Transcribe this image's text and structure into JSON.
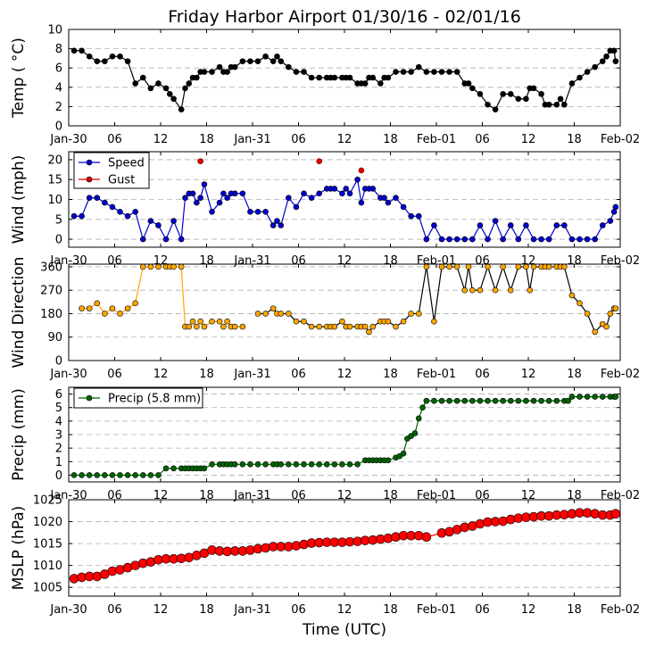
{
  "title": "Friday Harbor Airport 01/30/16 - 02/01/16",
  "xlabel": "Time (UTC)",
  "xtick_labels": [
    "Jan-30",
    "06",
    "12",
    "18",
    "Jan-31",
    "06",
    "12",
    "18",
    "Feb-01",
    "06",
    "12",
    "18",
    "Feb-02"
  ],
  "colors": {
    "temp": "#000000",
    "speed": "#0000cc",
    "gust": "#dd0000",
    "direction": "#ffa500",
    "precip": "#006400",
    "mslp": "#ff0000",
    "grid": "#b0b0b0"
  },
  "chart_data": [
    {
      "id": "temp",
      "type": "line",
      "ylabel": "Temp ( °C)",
      "ylim": [
        0,
        10
      ],
      "yticks": [
        0,
        2,
        4,
        6,
        8,
        10
      ],
      "xlim": [
        0,
        72
      ],
      "grid": true,
      "series": [
        {
          "x": [
            0.7,
            1.7,
            2.7,
            3.7,
            4.7,
            5.7,
            6.7,
            7.7,
            8.7,
            9.7,
            10.7,
            11.7,
            12.7,
            13.2,
            13.7,
            14.7,
            15.2,
            15.7,
            16.2,
            16.7,
            17.2,
            17.7,
            18.7,
            19.7,
            20.2,
            20.7,
            21.2,
            21.7,
            22.7,
            23.7,
            24.7,
            25.7,
            26.7,
            27.2,
            27.7,
            28.7,
            29.7,
            30.7,
            31.7,
            32.7,
            33.7,
            34.2,
            34.7,
            35.7,
            36.2,
            36.7,
            37.7,
            38.2,
            38.7,
            39.2,
            39.7,
            40.7,
            41.2,
            41.7,
            42.7,
            43.7,
            44.7,
            45.7,
            46.7,
            47.7,
            48.7,
            49.7,
            50.7,
            51.7,
            52.2,
            52.7,
            53.7,
            54.7,
            55.7,
            56.7,
            57.7,
            58.7,
            59.7,
            60.2,
            60.7,
            61.7,
            62.2,
            62.7,
            63.7,
            64.2,
            64.7,
            65.7,
            66.7,
            67.7,
            68.7,
            69.7,
            70.2,
            70.7,
            71.2,
            71.4
          ],
          "values": [
            7.8,
            7.8,
            7.2,
            6.7,
            6.7,
            7.2,
            7.2,
            6.7,
            4.4,
            5.0,
            3.9,
            4.4,
            3.9,
            3.3,
            2.8,
            1.7,
            3.9,
            4.4,
            5.0,
            5.0,
            5.6,
            5.6,
            5.6,
            6.1,
            5.6,
            5.6,
            6.1,
            6.1,
            6.7,
            6.7,
            6.7,
            7.2,
            6.7,
            7.2,
            6.7,
            6.1,
            5.6,
            5.6,
            5.0,
            5.0,
            5.0,
            5.0,
            5.0,
            5.0,
            5.0,
            5.0,
            4.4,
            4.4,
            4.4,
            5.0,
            5.0,
            4.4,
            5.0,
            5.0,
            5.6,
            5.6,
            5.6,
            6.1,
            5.6,
            5.6,
            5.6,
            5.6,
            5.6,
            4.4,
            4.4,
            3.9,
            3.3,
            2.2,
            1.7,
            3.3,
            3.3,
            2.8,
            2.8,
            3.9,
            3.9,
            3.3,
            2.2,
            2.2,
            2.2,
            2.8,
            2.2,
            4.4,
            5.0,
            5.6,
            6.1,
            6.7,
            7.2,
            7.8,
            7.8,
            6.7
          ]
        }
      ]
    },
    {
      "id": "wind",
      "type": "line",
      "ylabel": "Wind (mph)",
      "ylim": [
        -2,
        22
      ],
      "yticks": [
        0,
        5,
        10,
        15,
        20
      ],
      "xlim": [
        0,
        72
      ],
      "grid": true,
      "legend": "upper-left",
      "series": [
        {
          "name": "Speed",
          "x": [
            0.7,
            1.7,
            2.7,
            3.7,
            4.7,
            5.7,
            6.7,
            7.7,
            8.7,
            9.7,
            10.7,
            11.7,
            12.7,
            13.7,
            14.7,
            15.2,
            15.7,
            16.2,
            16.7,
            17.2,
            17.7,
            18.7,
            19.7,
            20.2,
            20.7,
            21.2,
            21.7,
            22.7,
            23.7,
            24.7,
            25.7,
            26.7,
            27.2,
            27.7,
            28.7,
            29.7,
            30.7,
            31.7,
            32.7,
            33.7,
            34.2,
            34.7,
            35.7,
            36.2,
            36.7,
            37.7,
            38.2,
            38.7,
            39.2,
            39.7,
            40.7,
            41.2,
            41.7,
            42.7,
            43.7,
            44.7,
            45.7,
            46.7,
            47.7,
            48.7,
            49.7,
            50.7,
            51.7,
            52.7,
            53.7,
            54.7,
            55.7,
            56.7,
            57.7,
            58.7,
            59.7,
            60.7,
            61.7,
            62.7,
            63.7,
            64.7,
            65.7,
            66.7,
            67.7,
            68.7,
            69.7,
            70.7,
            71.2,
            71.4
          ],
          "values": [
            5.8,
            5.8,
            10.4,
            10.4,
            9.2,
            8.1,
            6.9,
            5.8,
            6.9,
            0,
            4.6,
            3.5,
            0,
            4.6,
            0,
            10.4,
            11.5,
            11.5,
            9.2,
            10.4,
            13.8,
            6.9,
            9.2,
            11.5,
            10.4,
            11.5,
            11.5,
            11.5,
            6.9,
            6.9,
            6.9,
            3.5,
            4.6,
            3.5,
            10.4,
            8.1,
            11.5,
            10.4,
            11.5,
            12.7,
            12.7,
            12.7,
            11.5,
            12.7,
            11.5,
            15.0,
            9.2,
            12.7,
            12.7,
            12.7,
            10.4,
            10.4,
            9.2,
            10.4,
            8.1,
            5.8,
            5.8,
            0,
            3.5,
            0,
            0,
            0,
            0,
            0,
            3.5,
            0,
            4.6,
            0,
            3.5,
            0,
            3.5,
            0,
            0,
            0,
            3.5,
            3.5,
            0,
            0,
            0,
            0,
            3.5,
            4.6,
            6.9,
            8.1
          ]
        },
        {
          "name": "Gust",
          "x": [
            17.2,
            32.7,
            38.2
          ],
          "values": [
            19.6,
            19.6,
            17.3
          ]
        }
      ]
    },
    {
      "id": "direction",
      "type": "line",
      "ylabel": "Wind Direction",
      "ylim": [
        0,
        370
      ],
      "yticks": [
        0,
        90,
        180,
        270,
        360
      ],
      "xlim": [
        0,
        72
      ],
      "grid": true,
      "series": [
        {
          "x": [
            1.7,
            2.7,
            3.7,
            4.7,
            5.7,
            6.7,
            7.7,
            8.7,
            9.7,
            10.7,
            11.7,
            12.7,
            13.2,
            13.7,
            14.7,
            15.2,
            15.7,
            16.2,
            16.7,
            17.2,
            17.7,
            18.7,
            19.7,
            20.2,
            20.7,
            21.2,
            21.7,
            22.7
          ],
          "values": [
            200,
            200,
            220,
            180,
            200,
            180,
            200,
            220,
            360,
            360,
            360,
            360,
            360,
            360,
            360,
            130,
            130,
            150,
            130,
            150,
            130,
            150,
            150,
            130,
            150,
            130,
            130,
            130
          ]
        },
        {
          "x": [
            24.7,
            25.7,
            26.7,
            27.2,
            27.7,
            28.7,
            29.7,
            30.7,
            31.7,
            32.7,
            33.7,
            34.2,
            34.7,
            35.7,
            36.2,
            36.7,
            37.7,
            38.2,
            38.7,
            39.2,
            39.7,
            40.7,
            41.2,
            41.7,
            42.7,
            43.7,
            44.7,
            45.7,
            46.7,
            47.7,
            48.7,
            49.7,
            50.7,
            51.7,
            52.2,
            52.7,
            53.7,
            54.7,
            55.7,
            56.7,
            57.7,
            58.7,
            59.7,
            60.2,
            60.7,
            61.7,
            62.2,
            62.7,
            63.7,
            64.2,
            64.7,
            65.7,
            66.7,
            67.7,
            68.7,
            69.7,
            70.2,
            70.7,
            71.2,
            71.4
          ],
          "values": [
            180,
            180,
            200,
            180,
            180,
            180,
            150,
            150,
            130,
            130,
            130,
            130,
            130,
            150,
            130,
            130,
            130,
            130,
            130,
            110,
            130,
            150,
            150,
            150,
            130,
            150,
            180,
            180,
            360,
            150,
            360,
            360,
            360,
            270,
            360,
            270,
            270,
            360,
            270,
            360,
            270,
            360,
            360,
            270,
            360,
            360,
            360,
            360,
            360,
            360,
            360,
            250,
            220,
            180,
            110,
            140,
            130,
            180,
            200,
            200
          ]
        }
      ]
    },
    {
      "id": "precip",
      "type": "line",
      "ylabel": "Precip (mm)",
      "ylim": [
        -0.5,
        6.5
      ],
      "yticks": [
        0,
        1,
        2,
        3,
        4,
        5,
        6
      ],
      "xlim": [
        0,
        72
      ],
      "grid": true,
      "legend": "upper-left",
      "series": [
        {
          "name": "Precip (5.8 mm)",
          "x": [
            0.7,
            1.7,
            2.7,
            3.7,
            4.7,
            5.7,
            6.7,
            7.7,
            8.7,
            9.7,
            10.7,
            11.7,
            12.7,
            13.7,
            14.7,
            15.2,
            15.7,
            16.2,
            16.7,
            17.2,
            17.7,
            18.7,
            19.7,
            20.2,
            20.7,
            21.2,
            21.7,
            22.7,
            23.7,
            24.7,
            25.7,
            26.7,
            27.2,
            27.7,
            28.7,
            29.7,
            30.7,
            31.7,
            32.7,
            33.7,
            34.7,
            35.7,
            36.7,
            37.7,
            38.7,
            39.2,
            39.7,
            40.2,
            40.7,
            41.2,
            41.7,
            42.7,
            43.2,
            43.7,
            44.2,
            44.7,
            45.2,
            45.7,
            46.2,
            46.7,
            47.7,
            48.7,
            49.7,
            50.7,
            51.7,
            52.7,
            53.7,
            54.7,
            55.7,
            56.7,
            57.7,
            58.7,
            59.7,
            60.7,
            61.7,
            62.7,
            63.7,
            64.7,
            65.2,
            65.7,
            66.7,
            67.7,
            68.7,
            69.7,
            70.7,
            71.2,
            71.4
          ],
          "values": [
            0,
            0,
            0,
            0,
            0,
            0,
            0,
            0,
            0,
            0,
            0,
            0,
            0.5,
            0.5,
            0.5,
            0.5,
            0.5,
            0.5,
            0.5,
            0.5,
            0.5,
            0.8,
            0.8,
            0.8,
            0.8,
            0.8,
            0.8,
            0.8,
            0.8,
            0.8,
            0.8,
            0.8,
            0.8,
            0.8,
            0.8,
            0.8,
            0.8,
            0.8,
            0.8,
            0.8,
            0.8,
            0.8,
            0.8,
            0.8,
            1.1,
            1.1,
            1.1,
            1.1,
            1.1,
            1.1,
            1.1,
            1.3,
            1.4,
            1.6,
            2.7,
            2.9,
            3.1,
            4.2,
            5.0,
            5.5,
            5.5,
            5.5,
            5.5,
            5.5,
            5.5,
            5.5,
            5.5,
            5.5,
            5.5,
            5.5,
            5.5,
            5.5,
            5.5,
            5.5,
            5.5,
            5.5,
            5.5,
            5.5,
            5.5,
            5.8,
            5.8,
            5.8,
            5.8,
            5.8,
            5.8,
            5.8,
            5.8
          ]
        }
      ]
    },
    {
      "id": "mslp",
      "type": "line",
      "ylabel": "MSLP (hPa)",
      "ylim": [
        1003,
        1025
      ],
      "yticks": [
        1005,
        1010,
        1015,
        1020,
        1025
      ],
      "xlim": [
        0,
        72
      ],
      "grid": true,
      "series": [
        {
          "x": [
            0.7,
            1.7,
            2.7,
            3.7,
            4.7,
            5.7,
            6.7,
            7.7,
            8.7,
            9.7,
            10.7,
            11.7,
            12.7,
            13.7,
            14.7,
            15.7,
            16.7,
            17.7,
            18.7,
            19.7,
            20.7,
            21.7,
            22.7,
            23.7,
            24.7,
            25.7,
            26.7,
            27.7,
            28.7,
            29.7,
            30.7,
            31.7,
            32.7,
            33.7,
            34.7,
            35.7,
            36.7,
            37.7,
            38.7,
            39.7,
            40.7,
            41.7,
            42.7,
            43.7,
            44.7,
            45.7,
            46.7,
            48.7,
            49.7,
            50.7,
            51.7,
            52.7,
            53.7,
            54.7,
            55.7,
            56.7,
            57.7,
            58.7,
            59.7,
            60.7,
            61.7,
            62.7,
            63.7,
            64.7,
            65.7,
            66.7,
            67.7,
            68.7,
            69.7,
            70.7,
            71.4
          ],
          "values": [
            1007,
            1007.3,
            1007.5,
            1007.5,
            1008,
            1008.7,
            1009,
            1009.5,
            1010,
            1010.5,
            1010.8,
            1011.3,
            1011.5,
            1011.5,
            1011.6,
            1011.8,
            1012.3,
            1012.8,
            1013.5,
            1013.3,
            1013.2,
            1013.3,
            1013.3,
            1013.5,
            1013.8,
            1014,
            1014.3,
            1014.3,
            1014.3,
            1014.5,
            1014.8,
            1015.1,
            1015.2,
            1015.3,
            1015.3,
            1015.3,
            1015.4,
            1015.5,
            1015.7,
            1015.8,
            1016,
            1016.2,
            1016.5,
            1016.8,
            1016.8,
            1016.8,
            1016.5,
            1017.4,
            1017.7,
            1018.2,
            1018.7,
            1019,
            1019.5,
            1019.9,
            1020,
            1020.1,
            1020.5,
            1020.8,
            1021,
            1021.1,
            1021.3,
            1021.3,
            1021.5,
            1021.6,
            1021.8,
            1022,
            1022,
            1021.8,
            1021.5,
            1021.5,
            1021.8
          ]
        }
      ]
    }
  ]
}
